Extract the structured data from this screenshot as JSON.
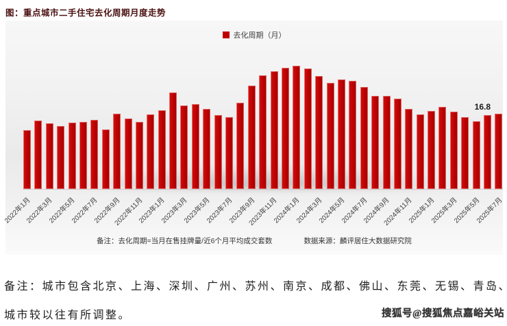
{
  "page": {
    "title": "图：重点城市二手住宅去化周期月度走势",
    "legend_label": "去化周期（月）",
    "note_left": "备注：去化周期=当月在售挂牌量/近6个月平均成交套数",
    "note_right": "数据来源：麟评居住大数据研究院",
    "footer_line1": "备注：城市包含北京、上海、深圳、广州、苏州、南京、成都、佛山、东莞、无锡、青岛、厦门、郑州，",
    "footer_line2": "城市较以往有所调整。",
    "watermark": "搜狐号@搜狐焦点嘉峪关站",
    "colors": {
      "bar": "#c00000",
      "title": "#4a1010",
      "annotation": "#1a1a1a"
    }
  },
  "chart_data": {
    "type": "bar",
    "title": "图：重点城市二手住宅去化周期月度走势",
    "legend": [
      "去化周期（月）"
    ],
    "categories": [
      "2022年1月",
      "2022年2月",
      "2022年3月",
      "2022年4月",
      "2022年5月",
      "2022年6月",
      "2022年7月",
      "2022年8月",
      "2022年9月",
      "2022年10月",
      "2022年11月",
      "2022年12月",
      "2023年1月",
      "2023年2月",
      "2023年3月",
      "2023年4月",
      "2023年5月",
      "2023年6月",
      "2023年7月",
      "2023年8月",
      "2023年9月",
      "2023年10月",
      "2023年11月",
      "2023年12月",
      "2024年1月",
      "2024年2月",
      "2024年3月",
      "2024年4月",
      "2024年5月",
      "2024年6月",
      "2024年7月",
      "2024年8月",
      "2024年9月",
      "2024年10月",
      "2024年11月",
      "2024年12月",
      "2025年1月",
      "2025年2月",
      "2025年3月",
      "2025年4月",
      "2025年5月",
      "2025年6月",
      "2025年7月"
    ],
    "values": [
      13.2,
      15.2,
      14.6,
      14.1,
      14.8,
      15.0,
      15.5,
      13.3,
      16.8,
      15.8,
      14.9,
      16.7,
      17.5,
      21.5,
      18.7,
      19.0,
      17.9,
      16.5,
      16.1,
      19.2,
      23.0,
      25.3,
      26.3,
      27.1,
      27.5,
      26.9,
      25.2,
      23.6,
      24.4,
      24.1,
      22.8,
      20.7,
      20.8,
      20.2,
      17.8,
      16.7,
      17.4,
      18.3,
      17.2,
      16.0,
      15.1,
      16.5,
      16.8
    ],
    "x_tick_labels": [
      "2022年1月",
      "2022年3月",
      "2022年5月",
      "2022年7月",
      "2022年9月",
      "2022年11月",
      "2023年1月",
      "2023年3月",
      "2023年5月",
      "2023年7月",
      "2023年9月",
      "2023年11月",
      "2024年1月",
      "2024年3月",
      "2024年5月",
      "2024年7月",
      "2024年9月",
      "2024年11月",
      "2025年1月",
      "2025年3月",
      "2025年5月",
      "2025年7月"
    ],
    "xlabel": "",
    "ylabel": "去化周期（月）",
    "ylim": [
      0,
      28
    ],
    "gridlines": false,
    "legend_position": "top-center",
    "bar_color": "#c00000",
    "axis_label_rotation_deg": 45,
    "annotations": [
      {
        "category": "2025年7月",
        "text": "16.8"
      }
    ]
  }
}
